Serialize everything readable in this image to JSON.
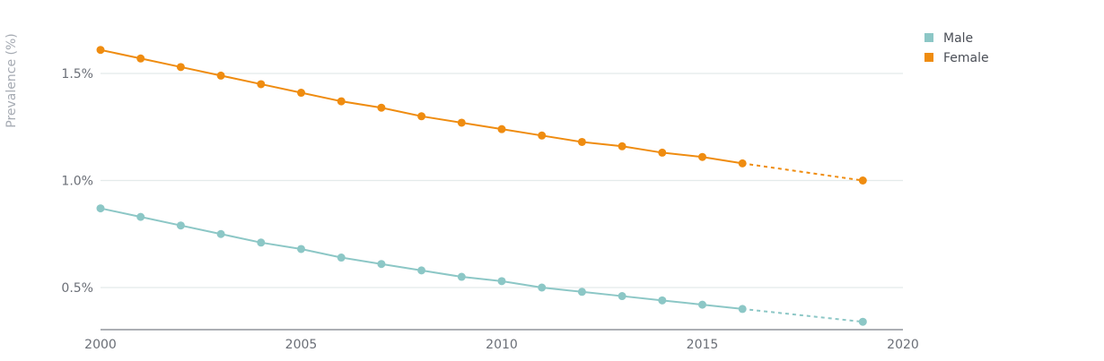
{
  "chart_data": {
    "type": "line",
    "ylabel": "Prevalence (%)",
    "xlim": [
      2000,
      2020
    ],
    "ylim": [
      0.3,
      1.7
    ],
    "x_ticks": [
      2000,
      2005,
      2010,
      2015,
      2020
    ],
    "y_ticks": [
      {
        "value": 0.5,
        "label": "0.5%"
      },
      {
        "value": 1.0,
        "label": "1.0%"
      },
      {
        "value": 1.5,
        "label": "1.5%"
      }
    ],
    "grid": "horizontal",
    "legend_position": "top-right",
    "series": [
      {
        "name": "Male",
        "color": "#8cc7c6",
        "x": [
          2000,
          2001,
          2002,
          2003,
          2004,
          2005,
          2006,
          2007,
          2008,
          2009,
          2010,
          2011,
          2012,
          2013,
          2014,
          2015,
          2016,
          2019
        ],
        "values": [
          0.87,
          0.83,
          0.79,
          0.75,
          0.71,
          0.68,
          0.64,
          0.61,
          0.58,
          0.55,
          0.53,
          0.5,
          0.48,
          0.46,
          0.44,
          0.42,
          0.4,
          0.34
        ],
        "projected_from_index": 16
      },
      {
        "name": "Female",
        "color": "#ef8c10",
        "x": [
          2000,
          2001,
          2002,
          2003,
          2004,
          2005,
          2006,
          2007,
          2008,
          2009,
          2010,
          2011,
          2012,
          2013,
          2014,
          2015,
          2016,
          2019
        ],
        "values": [
          1.61,
          1.57,
          1.53,
          1.49,
          1.45,
          1.41,
          1.37,
          1.34,
          1.3,
          1.27,
          1.24,
          1.21,
          1.18,
          1.16,
          1.13,
          1.11,
          1.08,
          1.0
        ],
        "projected_from_index": 16
      }
    ]
  }
}
